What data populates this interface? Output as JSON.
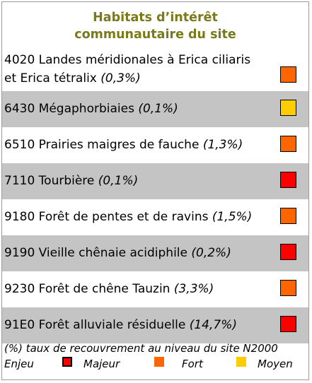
{
  "title": {
    "line1": "Habitats d’intérêt",
    "line2": "communautaire du site"
  },
  "colors": {
    "majeur": "#ff0000",
    "fort": "#ff6600",
    "moyen": "#ffcc00"
  },
  "habitats": [
    {
      "line1": "4020 Landes méridionales à Erica ciliaris",
      "line2": "et Erica tétralix ",
      "pct": "(0,3%)",
      "enjeu": "fort"
    },
    {
      "label": "6430 Mégaphorbiaies ",
      "pct": "(0,1%)",
      "enjeu": "moyen"
    },
    {
      "label": "6510 Prairies maigres de fauche ",
      "pct": "(1,3%)",
      "enjeu": "fort"
    },
    {
      "label": "7110 Tourbière ",
      "pct": "(0,1%)",
      "enjeu": "majeur"
    },
    {
      "label": "9180 Forêt de pentes et de ravins ",
      "pct": "(1,5%)",
      "enjeu": "fort"
    },
    {
      "label": "9190 Vieille chênaie acidiphile ",
      "pct": "(0,2%)",
      "enjeu": "majeur"
    },
    {
      "label": "9230 Forêt de chêne Tauzin ",
      "pct": "(3,3%)",
      "enjeu": "fort"
    },
    {
      "label": "91E0 Forêt alluviale résiduelle ",
      "pct": "(14,7%)",
      "enjeu": "majeur"
    }
  ],
  "footer": {
    "note": "(%) taux de recouvrement au niveau du site N2000",
    "legend_title": "Enjeu",
    "majeur_label": "Majeur",
    "fort_label": "Fort",
    "moyen_label": "Moyen"
  }
}
